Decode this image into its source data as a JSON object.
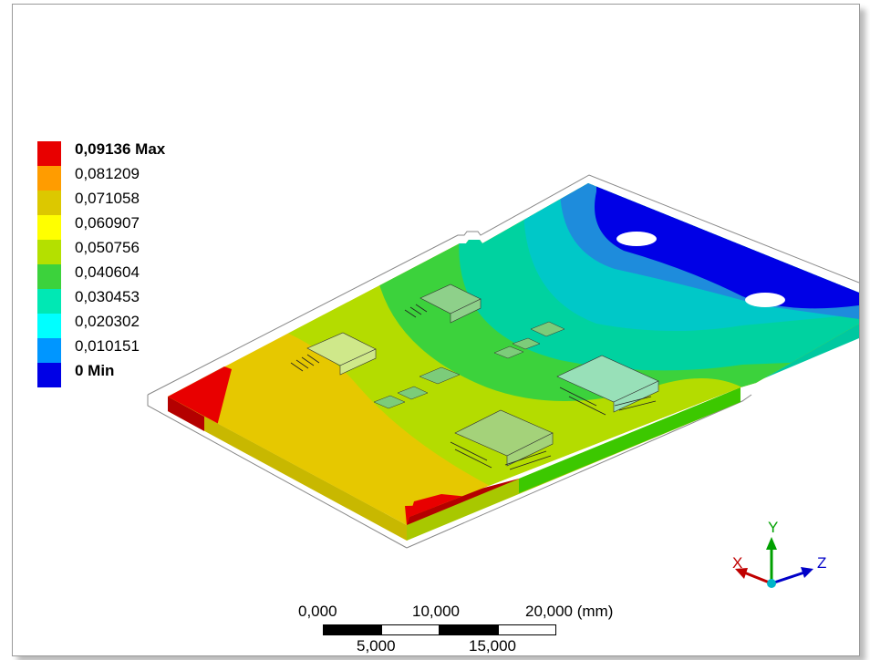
{
  "legend": {
    "levels": [
      {
        "label": "0,09136 Max",
        "color": "#e80000",
        "bold": true
      },
      {
        "label": "0,081209",
        "color": "#ff9c00",
        "bold": false
      },
      {
        "label": "0,071058",
        "color": "#dcc800",
        "bold": false
      },
      {
        "label": "0,060907",
        "color": "#ffff00",
        "bold": false
      },
      {
        "label": "0,050756",
        "color": "#b4e000",
        "bold": false
      },
      {
        "label": "0,040604",
        "color": "#3cd23c",
        "bold": false
      },
      {
        "label": "0,030453",
        "color": "#00e8b4",
        "bold": false
      },
      {
        "label": "0,020302",
        "color": "#00ffff",
        "bold": false
      },
      {
        "label": "0,010151",
        "color": "#0096ff",
        "bold": false
      },
      {
        "label": "0 Min",
        "color": "#0000e6",
        "bold": true
      }
    ]
  },
  "scale_bar": {
    "top_labels": [
      "0,000",
      "10,000",
      "20,000 (mm)"
    ],
    "bottom_labels": [
      "5,000",
      "15,000"
    ]
  },
  "triad": {
    "x_label": "X",
    "y_label": "Y",
    "z_label": "Z",
    "x_color": "#c00000",
    "y_color": "#00a000",
    "z_color": "#0000c8"
  }
}
